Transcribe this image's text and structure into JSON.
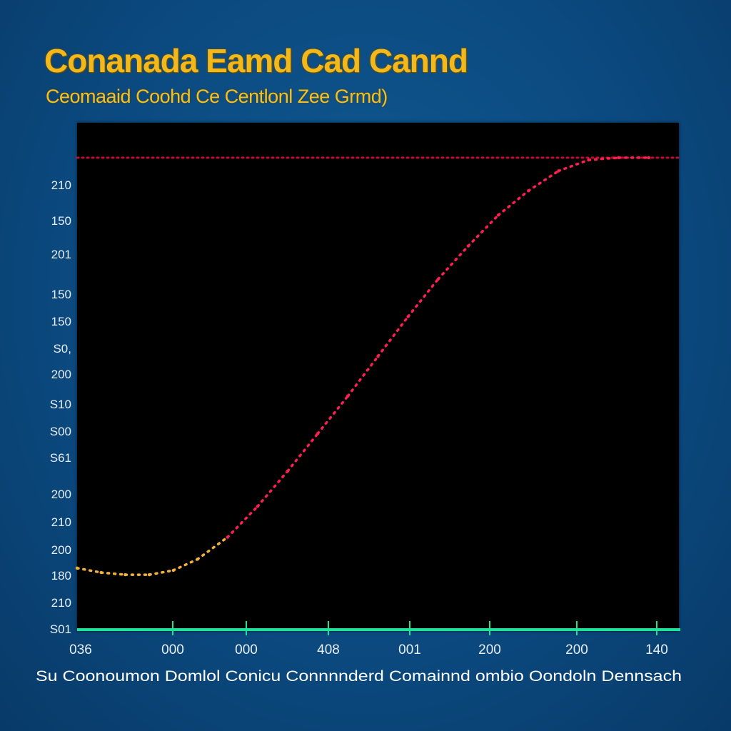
{
  "chart_data": {
    "type": "line",
    "title": "Conanada Eamd Cad Cannd",
    "subtitle": "Ceomaaid Coohd Ce Centlonl Zee Grmd)",
    "xlabel": "Su Coonoumon Domlol  Conicu Connnnderd  Comainnd  ombio Oondoln Dennsach",
    "y_tick_labels": [
      "210",
      "150",
      "201",
      "150",
      "150",
      "S0,",
      "200",
      "S10",
      "S00",
      "S61",
      "200",
      "210",
      "200",
      "180",
      "210",
      "S01"
    ],
    "x_tick_labels": [
      "036",
      "000",
      "000",
      "408",
      "001",
      "200",
      "200",
      "140"
    ],
    "reference_line": {
      "label": "",
      "y": 210,
      "color": "#e0103a",
      "style": "dotted"
    },
    "grid": false,
    "colors": {
      "plot_background": "#000000",
      "axis": "#1de39a",
      "line": "#ff1f4f",
      "line_low": "#f4b23a",
      "title": "#f2b81c"
    },
    "ylim": [
      0,
      220
    ],
    "xlim": [
      0,
      100
    ],
    "series": [
      {
        "x": [
          0,
          4,
          8,
          12,
          16,
          20,
          25,
          30,
          35,
          40,
          45,
          50,
          55,
          60,
          65,
          70,
          75,
          80,
          85,
          90,
          95
        ],
        "y": [
          24,
          22,
          21,
          21,
          23,
          28,
          38,
          52,
          68,
          85,
          102,
          120,
          138,
          155,
          170,
          184,
          195,
          204,
          209,
          210,
          210
        ]
      }
    ]
  }
}
